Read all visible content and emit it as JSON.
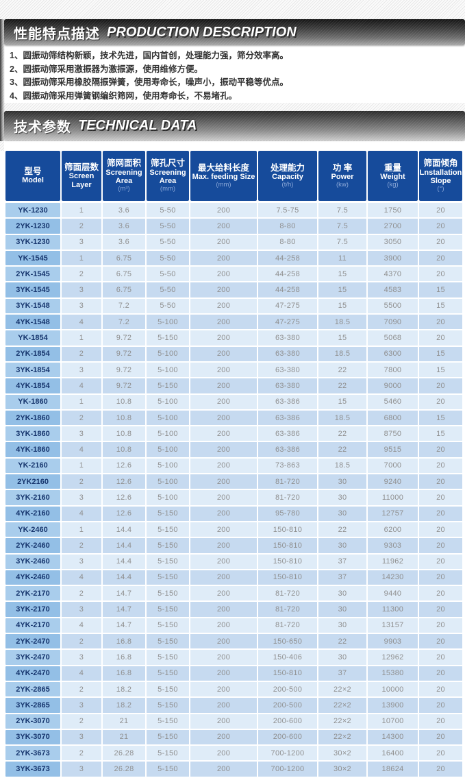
{
  "colors": {
    "header-bg": "#164b9b",
    "unit-text": "#8ba8d8",
    "data-text": "#8f8f8f",
    "model-text": "#17366e",
    "row-odd": "#dfecf8",
    "row-even": "#c6daf0",
    "model-odd": "#a9cdec",
    "model-even": "#93bfe6"
  },
  "banners": {
    "desc_cn": "性能特点描述",
    "desc_en": "PRODUCTION DESCRIPTION",
    "tech_cn": "技术参数",
    "tech_en": "TECHNICAL DATA"
  },
  "features": [
    "1、圆振动筛结构新颖，技术先进，国内首创，处理能力强，筛分效率高。",
    "2、圆振动筛采用激振器为激振源，使用维修方便。",
    "3、圆振动筛采用橡胶隔振弹簧，使用寿命长，噪声小，振动平稳等优点。",
    "4、圆振动筛采用弹簧钢编织筛网，使用寿命长，不易堵孔。"
  ],
  "table": {
    "columns": [
      {
        "cn": "型号",
        "en": "Model",
        "unit": ""
      },
      {
        "cn": "筛面层数",
        "en": "Screen Layer",
        "unit": ""
      },
      {
        "cn": "筛网面积",
        "en": "Screening Area",
        "unit": "(m³)"
      },
      {
        "cn": "筛孔尺寸",
        "en": "Screening Area",
        "unit": "(mm)"
      },
      {
        "cn": "最大给料长度",
        "en": "Max. feeding Size",
        "unit": "(mm)"
      },
      {
        "cn": "处理能力",
        "en": "Capacity",
        "unit": "(t/h)"
      },
      {
        "cn": "功 率",
        "en": "Power",
        "unit": "(kw)"
      },
      {
        "cn": "重量",
        "en": "Weight",
        "unit": "(kg)"
      },
      {
        "cn": "筛面倾角",
        "en": "Lnstallation Slope",
        "unit": "(°)"
      }
    ],
    "rows": [
      [
        "YK-1230",
        "1",
        "3.6",
        "5-50",
        "200",
        "7.5-75",
        "7.5",
        "1750",
        "20"
      ],
      [
        "2YK-1230",
        "2",
        "3.6",
        "5-50",
        "200",
        "8-80",
        "7.5",
        "2700",
        "20"
      ],
      [
        "3YK-1230",
        "3",
        "3.6",
        "5-50",
        "200",
        "8-80",
        "7.5",
        "3050",
        "20"
      ],
      [
        "YK-1545",
        "1",
        "6.75",
        "5-50",
        "200",
        "44-258",
        "11",
        "3900",
        "20"
      ],
      [
        "2YK-1545",
        "2",
        "6.75",
        "5-50",
        "200",
        "44-258",
        "15",
        "4370",
        "20"
      ],
      [
        "3YK-1545",
        "3",
        "6.75",
        "5-50",
        "200",
        "44-258",
        "15",
        "4583",
        "15"
      ],
      [
        "3YK-1548",
        "3",
        "7.2",
        "5-50",
        "200",
        "47-275",
        "15",
        "5500",
        "15"
      ],
      [
        "4YK-1548",
        "4",
        "7.2",
        "5-100",
        "200",
        "47-275",
        "18.5",
        "7090",
        "20"
      ],
      [
        "YK-1854",
        "1",
        "9.72",
        "5-150",
        "200",
        "63-380",
        "15",
        "5068",
        "20"
      ],
      [
        "2YK-1854",
        "2",
        "9.72",
        "5-100",
        "200",
        "63-380",
        "18.5",
        "6300",
        "15"
      ],
      [
        "3YK-1854",
        "3",
        "9.72",
        "5-100",
        "200",
        "63-380",
        "22",
        "7800",
        "15"
      ],
      [
        "4YK-1854",
        "4",
        "9.72",
        "5-150",
        "200",
        "63-380",
        "22",
        "9000",
        "20"
      ],
      [
        "YK-1860",
        "1",
        "10.8",
        "5-100",
        "200",
        "63-386",
        "15",
        "5460",
        "20"
      ],
      [
        "2YK-1860",
        "2",
        "10.8",
        "5-100",
        "200",
        "63-386",
        "18.5",
        "6800",
        "15"
      ],
      [
        "3YK-1860",
        "3",
        "10.8",
        "5-100",
        "200",
        "63-386",
        "22",
        "8750",
        "15"
      ],
      [
        "4YK-1860",
        "4",
        "10.8",
        "5-100",
        "200",
        "63-386",
        "22",
        "9515",
        "20"
      ],
      [
        "YK-2160",
        "1",
        "12.6",
        "5-100",
        "200",
        "73-863",
        "18.5",
        "7000",
        "20"
      ],
      [
        "2YK2160",
        "2",
        "12.6",
        "5-100",
        "200",
        "81-720",
        "30",
        "9240",
        "20"
      ],
      [
        "3YK-2160",
        "3",
        "12.6",
        "5-100",
        "200",
        "81-720",
        "30",
        "11000",
        "20"
      ],
      [
        "4YK-2160",
        "4",
        "12.6",
        "5-150",
        "200",
        "95-780",
        "30",
        "12757",
        "20"
      ],
      [
        "YK-2460",
        "1",
        "14.4",
        "5-150",
        "200",
        "150-810",
        "22",
        "6200",
        "20"
      ],
      [
        "2YK-2460",
        "2",
        "14.4",
        "5-150",
        "200",
        "150-810",
        "30",
        "9303",
        "20"
      ],
      [
        "3YK-2460",
        "3",
        "14.4",
        "5-150",
        "200",
        "150-810",
        "37",
        "11962",
        "20"
      ],
      [
        "4YK-2460",
        "4",
        "14.4",
        "5-150",
        "200",
        "150-810",
        "37",
        "14230",
        "20"
      ],
      [
        "2YK-2170",
        "2",
        "14.7",
        "5-150",
        "200",
        "81-720",
        "30",
        "9440",
        "20"
      ],
      [
        "3YK-2170",
        "3",
        "14.7",
        "5-150",
        "200",
        "81-720",
        "30",
        "11300",
        "20"
      ],
      [
        "4YK-2170",
        "4",
        "14.7",
        "5-150",
        "200",
        "81-720",
        "30",
        "13157",
        "20"
      ],
      [
        "2YK-2470",
        "2",
        "16.8",
        "5-150",
        "200",
        "150-650",
        "22",
        "9903",
        "20"
      ],
      [
        "3YK-2470",
        "3",
        "16.8",
        "5-150",
        "200",
        "150-406",
        "30",
        "12962",
        "20"
      ],
      [
        "4YK-2470",
        "4",
        "16.8",
        "5-150",
        "200",
        "150-810",
        "37",
        "15380",
        "20"
      ],
      [
        "2YK-2865",
        "2",
        "18.2",
        "5-150",
        "200",
        "200-500",
        "22×2",
        "10000",
        "20"
      ],
      [
        "3YK-2865",
        "3",
        "18.2",
        "5-150",
        "200",
        "200-500",
        "22×2",
        "13900",
        "20"
      ],
      [
        "2YK-3070",
        "2",
        "21",
        "5-150",
        "200",
        "200-600",
        "22×2",
        "10700",
        "20"
      ],
      [
        "3YK-3070",
        "3",
        "21",
        "5-150",
        "200",
        "200-600",
        "22×2",
        "14300",
        "20"
      ],
      [
        "2YK-3673",
        "2",
        "26.28",
        "5-150",
        "200",
        "700-1200",
        "30×2",
        "16400",
        "20"
      ],
      [
        "3YK-3673",
        "3",
        "26.28",
        "5-150",
        "200",
        "700-1200",
        "30×2",
        "18624",
        "20"
      ]
    ]
  }
}
